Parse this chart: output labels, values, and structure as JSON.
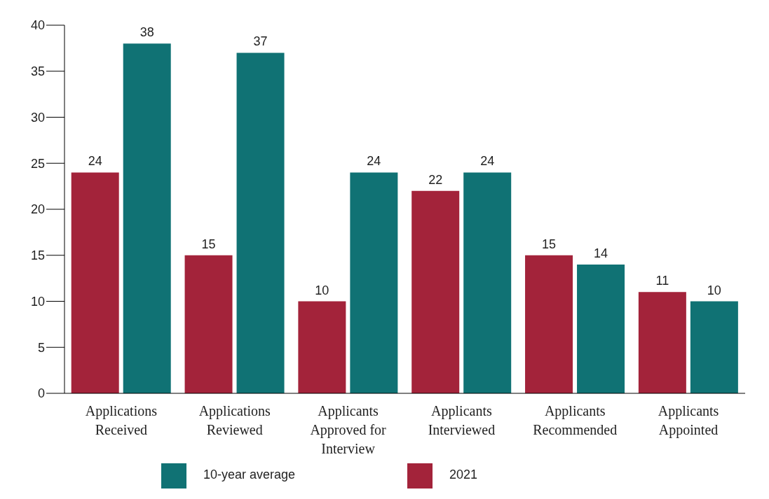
{
  "chart_data": {
    "type": "bar",
    "categories": [
      "Applications Received",
      "Applications Reviewed",
      "Applicants Approved for Interview",
      "Applicants Interviewed",
      "Applicants Recommended",
      "Applicants Appointed"
    ],
    "series": [
      {
        "name": "2021",
        "color": "#a3233a",
        "values": [
          24,
          15,
          10,
          22,
          15,
          11
        ]
      },
      {
        "name": "10-year average",
        "color": "#107274",
        "values": [
          38,
          37,
          24,
          24,
          14,
          10
        ]
      }
    ],
    "ylim": [
      0,
      40
    ],
    "yticks": [
      0,
      5,
      10,
      15,
      20,
      25,
      30,
      35,
      40
    ],
    "data_labels": true,
    "grid": false,
    "legend": "bottom"
  }
}
